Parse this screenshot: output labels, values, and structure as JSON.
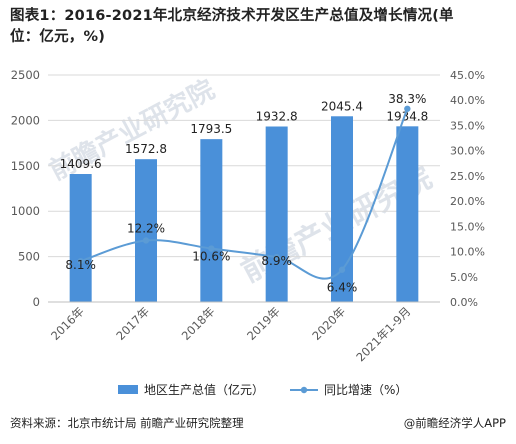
{
  "title_line1": "图表1：2016-2021年北京经济技术开发区生产总值及增长情况(单",
  "title_line2": "位：亿元，%)",
  "source": "资料来源：北京市统计局 前瞻产业研究院整理",
  "brand": "@前瞻经济学人APP",
  "watermark": "前瞻产业研究院",
  "colors": {
    "bar": "#4a90d9",
    "line": "#5b9bd5",
    "grid": "#d9d9d9",
    "tick": "#595959"
  },
  "chart_data": {
    "type": "bar",
    "categories": [
      "2016年",
      "2017年",
      "2018年",
      "2019年",
      "2020年",
      "2021年1-9月"
    ],
    "series": [
      {
        "name": "地区生产总值（亿元）",
        "type": "bar",
        "axis": "left",
        "values": [
          1409.6,
          1572.8,
          1793.5,
          1932.8,
          2045.4,
          1934.8
        ],
        "labels": [
          "1409.6",
          "1572.8",
          "1793.5",
          "1932.8",
          "2045.4",
          "1934.8"
        ]
      },
      {
        "name": "同比增速（%）",
        "type": "line",
        "axis": "right",
        "values": [
          8.1,
          12.2,
          10.6,
          8.9,
          6.4,
          38.3
        ],
        "labels": [
          "8.1%",
          "12.2%",
          "10.6%",
          "8.9%",
          "6.4%",
          "38.3%"
        ]
      }
    ],
    "y_left": {
      "range": [
        0,
        2500
      ],
      "ticks": [
        "0",
        "500",
        "1000",
        "1500",
        "2000",
        "2500"
      ]
    },
    "y_right": {
      "range": [
        0,
        45
      ],
      "ticks": [
        "0.0%",
        "5.0%",
        "10.0%",
        "15.0%",
        "20.0%",
        "25.0%",
        "30.0%",
        "35.0%",
        "40.0%",
        "45.0%"
      ]
    },
    "legend": "bottom",
    "grid": true
  }
}
